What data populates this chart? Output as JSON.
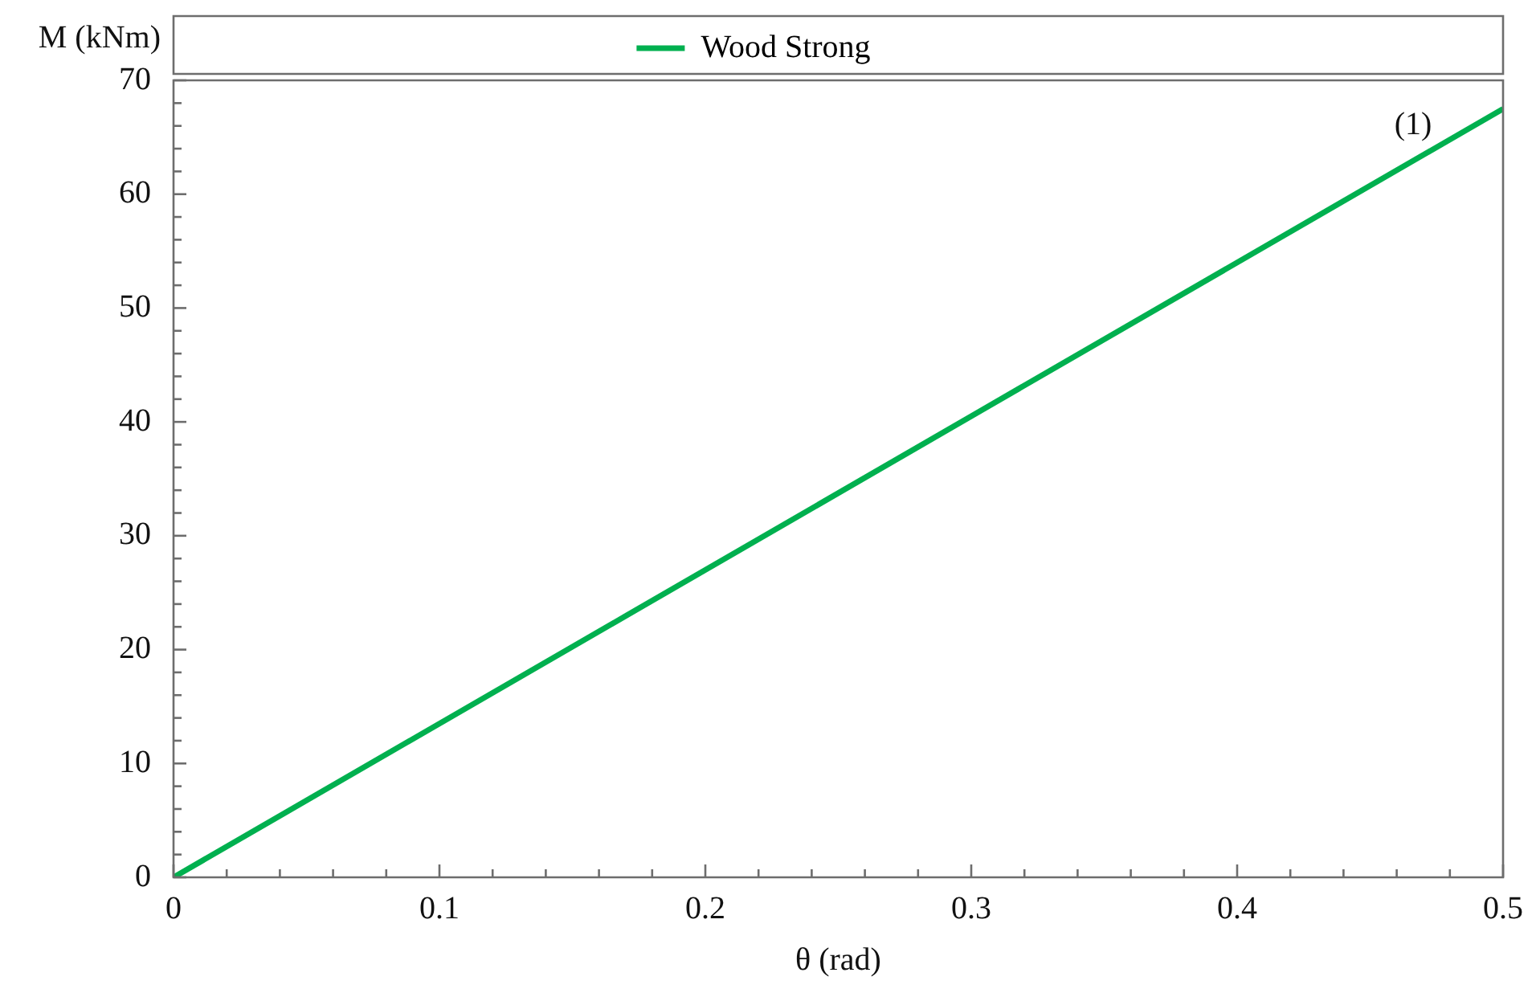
{
  "chart_data": {
    "type": "line",
    "xlabel": "θ (rad)",
    "ylabel": "M (kNm)",
    "x": [
      0,
      0.5
    ],
    "series": [
      {
        "name": "Wood Strong",
        "color": "#00b04f",
        "values": [
          0,
          67.5
        ]
      }
    ],
    "xlim": [
      0,
      0.5
    ],
    "xticks": [
      0,
      {
        "value": 0.02,
        "label": null
      },
      {
        "value": 0.04,
        "label": null
      },
      {
        "value": 0.06,
        "label": null
      },
      {
        "value": 0.08,
        "label": null
      },
      0.1,
      {
        "value": 0.12,
        "label": null
      },
      {
        "value": 0.14,
        "label": null
      },
      {
        "value": 0.16,
        "label": null
      },
      {
        "value": 0.18,
        "label": null
      },
      0.2,
      {
        "value": 0.22,
        "label": null
      },
      {
        "value": 0.24,
        "label": null
      },
      {
        "value": 0.26,
        "label": null
      },
      {
        "value": 0.28,
        "label": null
      },
      0.3,
      {
        "value": 0.32,
        "label": null
      },
      {
        "value": 0.34,
        "label": null
      },
      {
        "value": 0.36,
        "label": null
      },
      {
        "value": 0.38,
        "label": null
      },
      0.4,
      {
        "value": 0.42,
        "label": null
      },
      {
        "value": 0.44,
        "label": null
      },
      {
        "value": 0.46,
        "label": null
      },
      {
        "value": 0.48,
        "label": null
      },
      0.5
    ],
    "ylim": [
      0,
      70
    ],
    "yticks": [
      0,
      {
        "value": 2,
        "label": null
      },
      {
        "value": 4,
        "label": null
      },
      {
        "value": 6,
        "label": null
      },
      {
        "value": 8,
        "label": null
      },
      10,
      {
        "value": 12,
        "label": null
      },
      {
        "value": 14,
        "label": null
      },
      {
        "value": 16,
        "label": null
      },
      {
        "value": 18,
        "label": null
      },
      20,
      {
        "value": 22,
        "label": null
      },
      {
        "value": 24,
        "label": null
      },
      {
        "value": 26,
        "label": null
      },
      {
        "value": 28,
        "label": null
      },
      30,
      {
        "value": 32,
        "label": null
      },
      {
        "value": 34,
        "label": null
      },
      {
        "value": 36,
        "label": null
      },
      {
        "value": 38,
        "label": null
      },
      40,
      {
        "value": 42,
        "label": null
      },
      {
        "value": 44,
        "label": null
      },
      {
        "value": 46,
        "label": null
      },
      {
        "value": 48,
        "label": null
      },
      50,
      {
        "value": 52,
        "label": null
      },
      {
        "value": 54,
        "label": null
      },
      {
        "value": 56,
        "label": null
      },
      {
        "value": 58,
        "label": null
      },
      60,
      {
        "value": 62,
        "label": null
      },
      {
        "value": 64,
        "label": null
      },
      {
        "value": 66,
        "label": null
      },
      {
        "value": 68,
        "label": null
      },
      70
    ],
    "annotations": [
      "(1)"
    ],
    "grid": false,
    "legend": "top",
    "marker": "none",
    "line_style": "solid"
  }
}
